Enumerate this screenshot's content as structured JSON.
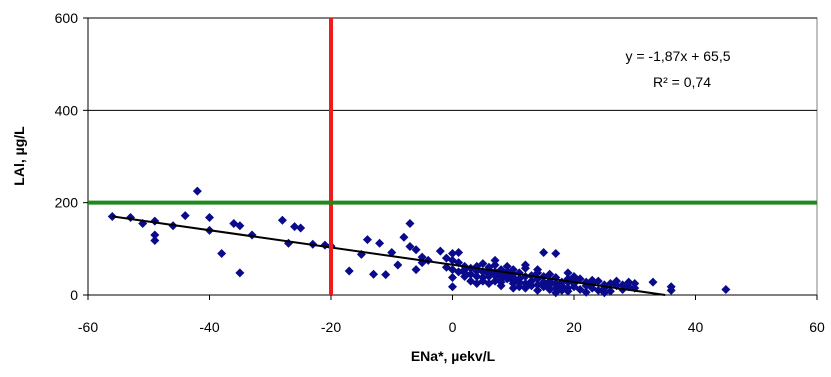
{
  "chart_data": {
    "type": "scatter",
    "xlabel": "ENa*, µekv/L",
    "ylabel": "LAl, µg/L",
    "xlim": [
      -60,
      60
    ],
    "ylim": [
      0,
      600
    ],
    "x_ticks": [
      -60,
      -40,
      -20,
      0,
      20,
      40,
      60
    ],
    "y_ticks": [
      0,
      200,
      400,
      600
    ],
    "grid": "horizontal",
    "equation": "y = -1,87x + 65,5",
    "r_squared": "R² = 0,74",
    "trendline": {
      "slope": -1.87,
      "intercept": 65.5,
      "x_range": [
        -56,
        35
      ]
    },
    "reference_lines": [
      {
        "orientation": "vertical",
        "value": -20,
        "color": "#ee1c1c"
      },
      {
        "orientation": "horizontal",
        "value": 200,
        "color": "#1e8a1e"
      }
    ],
    "marker_color": "#0a0a8c",
    "points": [
      [
        -56,
        170
      ],
      [
        -53,
        168
      ],
      [
        -51,
        155
      ],
      [
        -49,
        160
      ],
      [
        -49,
        130
      ],
      [
        -49,
        118
      ],
      [
        -46,
        150
      ],
      [
        -44,
        172
      ],
      [
        -42,
        225
      ],
      [
        -40,
        168
      ],
      [
        -40,
        140
      ],
      [
        -38,
        90
      ],
      [
        -36,
        155
      ],
      [
        -35,
        150
      ],
      [
        -35,
        48
      ],
      [
        -33,
        130
      ],
      [
        -28,
        162
      ],
      [
        -27,
        112
      ],
      [
        -26,
        148
      ],
      [
        -25,
        145
      ],
      [
        -23,
        110
      ],
      [
        -21,
        108
      ],
      [
        -17,
        52
      ],
      [
        -15,
        88
      ],
      [
        -14,
        120
      ],
      [
        -13,
        45
      ],
      [
        -12,
        112
      ],
      [
        -11,
        44
      ],
      [
        -10,
        92
      ],
      [
        -9,
        65
      ],
      [
        -8,
        125
      ],
      [
        -7,
        155
      ],
      [
        -7,
        105
      ],
      [
        -6,
        98
      ],
      [
        -6,
        55
      ],
      [
        -5,
        70
      ],
      [
        -5,
        82
      ],
      [
        -4,
        75
      ],
      [
        -2,
        95
      ],
      [
        -1,
        80
      ],
      [
        -1,
        60
      ],
      [
        0,
        18
      ],
      [
        0,
        90
      ],
      [
        0,
        75
      ],
      [
        0,
        55
      ],
      [
        1,
        50
      ],
      [
        1,
        92
      ],
      [
        1,
        70
      ],
      [
        2,
        55
      ],
      [
        2,
        48
      ],
      [
        2,
        40
      ],
      [
        3,
        45
      ],
      [
        3,
        30
      ],
      [
        3,
        58
      ],
      [
        4,
        62
      ],
      [
        4,
        40
      ],
      [
        4,
        25
      ],
      [
        5,
        68
      ],
      [
        5,
        50
      ],
      [
        5,
        38
      ],
      [
        5,
        30
      ],
      [
        6,
        55
      ],
      [
        6,
        40
      ],
      [
        6,
        60
      ],
      [
        7,
        42
      ],
      [
        7,
        65
      ],
      [
        7,
        30
      ],
      [
        7,
        50
      ],
      [
        7,
        75
      ],
      [
        8,
        35
      ],
      [
        8,
        55
      ],
      [
        8,
        45
      ],
      [
        8,
        28
      ],
      [
        8,
        20
      ],
      [
        9,
        40
      ],
      [
        9,
        35
      ],
      [
        9,
        62
      ],
      [
        9,
        50
      ],
      [
        10,
        30
      ],
      [
        10,
        25
      ],
      [
        10,
        45
      ],
      [
        10,
        38
      ],
      [
        10,
        55
      ],
      [
        11,
        18
      ],
      [
        11,
        35
      ],
      [
        11,
        48
      ],
      [
        11,
        28
      ],
      [
        12,
        65
      ],
      [
        12,
        40
      ],
      [
        12,
        25
      ],
      [
        12,
        15
      ],
      [
        13,
        30
      ],
      [
        13,
        42
      ],
      [
        13,
        20
      ],
      [
        14,
        35
      ],
      [
        14,
        22
      ],
      [
        14,
        55
      ],
      [
        14,
        48
      ],
      [
        15,
        28
      ],
      [
        15,
        40
      ],
      [
        15,
        18
      ],
      [
        15,
        92
      ],
      [
        16,
        30
      ],
      [
        16,
        22
      ],
      [
        16,
        12
      ],
      [
        17,
        25
      ],
      [
        17,
        38
      ],
      [
        17,
        90
      ],
      [
        17,
        15
      ],
      [
        18,
        10
      ],
      [
        18,
        28
      ],
      [
        18,
        20
      ],
      [
        19,
        35
      ],
      [
        19,
        15
      ],
      [
        19,
        8
      ],
      [
        19,
        48
      ],
      [
        20,
        25
      ],
      [
        20,
        40
      ],
      [
        20,
        18
      ],
      [
        20,
        30
      ],
      [
        21,
        12
      ],
      [
        21,
        35
      ],
      [
        22,
        28
      ],
      [
        22,
        20
      ],
      [
        23,
        25
      ],
      [
        23,
        15
      ],
      [
        24,
        10
      ],
      [
        24,
        30
      ],
      [
        25,
        22
      ],
      [
        25,
        15
      ],
      [
        26,
        8
      ],
      [
        26,
        25
      ],
      [
        27,
        20
      ],
      [
        27,
        30
      ],
      [
        28,
        12
      ],
      [
        28,
        22
      ],
      [
        29,
        18
      ],
      [
        29,
        28
      ],
      [
        30,
        25
      ],
      [
        30,
        15
      ],
      [
        33,
        28
      ],
      [
        36,
        18
      ],
      [
        36,
        10
      ],
      [
        45,
        12
      ],
      [
        -20,
        106
      ],
      [
        6,
        45
      ],
      [
        8,
        38
      ],
      [
        16,
        45
      ],
      [
        22,
        6
      ],
      [
        12,
        58
      ],
      [
        0,
        38
      ],
      [
        2,
        62
      ],
      [
        10,
        15
      ],
      [
        17,
        5
      ],
      [
        4,
        52
      ],
      [
        14,
        10
      ],
      [
        6,
        25
      ],
      [
        19,
        28
      ],
      [
        23,
        32
      ],
      [
        25,
        5
      ]
    ]
  }
}
